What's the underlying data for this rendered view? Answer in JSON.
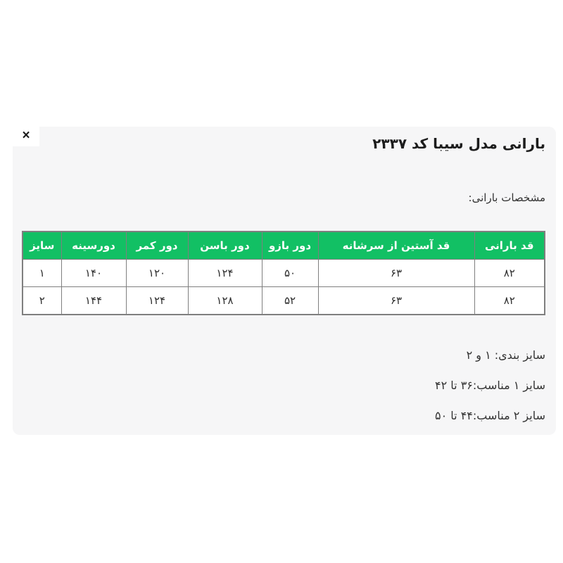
{
  "modal": {
    "close_icon": "×"
  },
  "header": {
    "title": "بارانی مدل سیبا کد ۲۳۳۷"
  },
  "content": {
    "spec_heading": "مشخصات بارانی:"
  },
  "size_table": {
    "columns": [
      "قد بارانی",
      "قد آستین از سرشانه",
      "دور بازو",
      "دور باسن",
      "دور کمر",
      "دورسینه",
      "سایز"
    ],
    "rows": [
      [
        "۸۲",
        "۶۳",
        "۵۰",
        "۱۲۴",
        "۱۲۰",
        "۱۴۰",
        "۱"
      ],
      [
        "۸۲",
        "۶۳",
        "۵۲",
        "۱۲۸",
        "۱۲۴",
        "۱۴۴",
        "۲"
      ]
    ]
  },
  "notes": {
    "lines": [
      "سایز بندی: ۱ و ۲",
      "سایز ۱ مناسب:۳۶ تا ۴۲",
      "سایز ۲ مناسب:۴۴ تا ۵۰"
    ]
  },
  "colors": {
    "header_green": "#12c064",
    "border_gray": "#7f7f7f",
    "panel_bg": "#f6f6f7",
    "page_bg": "#ffffff",
    "text_dark": "#1c1c1c"
  }
}
